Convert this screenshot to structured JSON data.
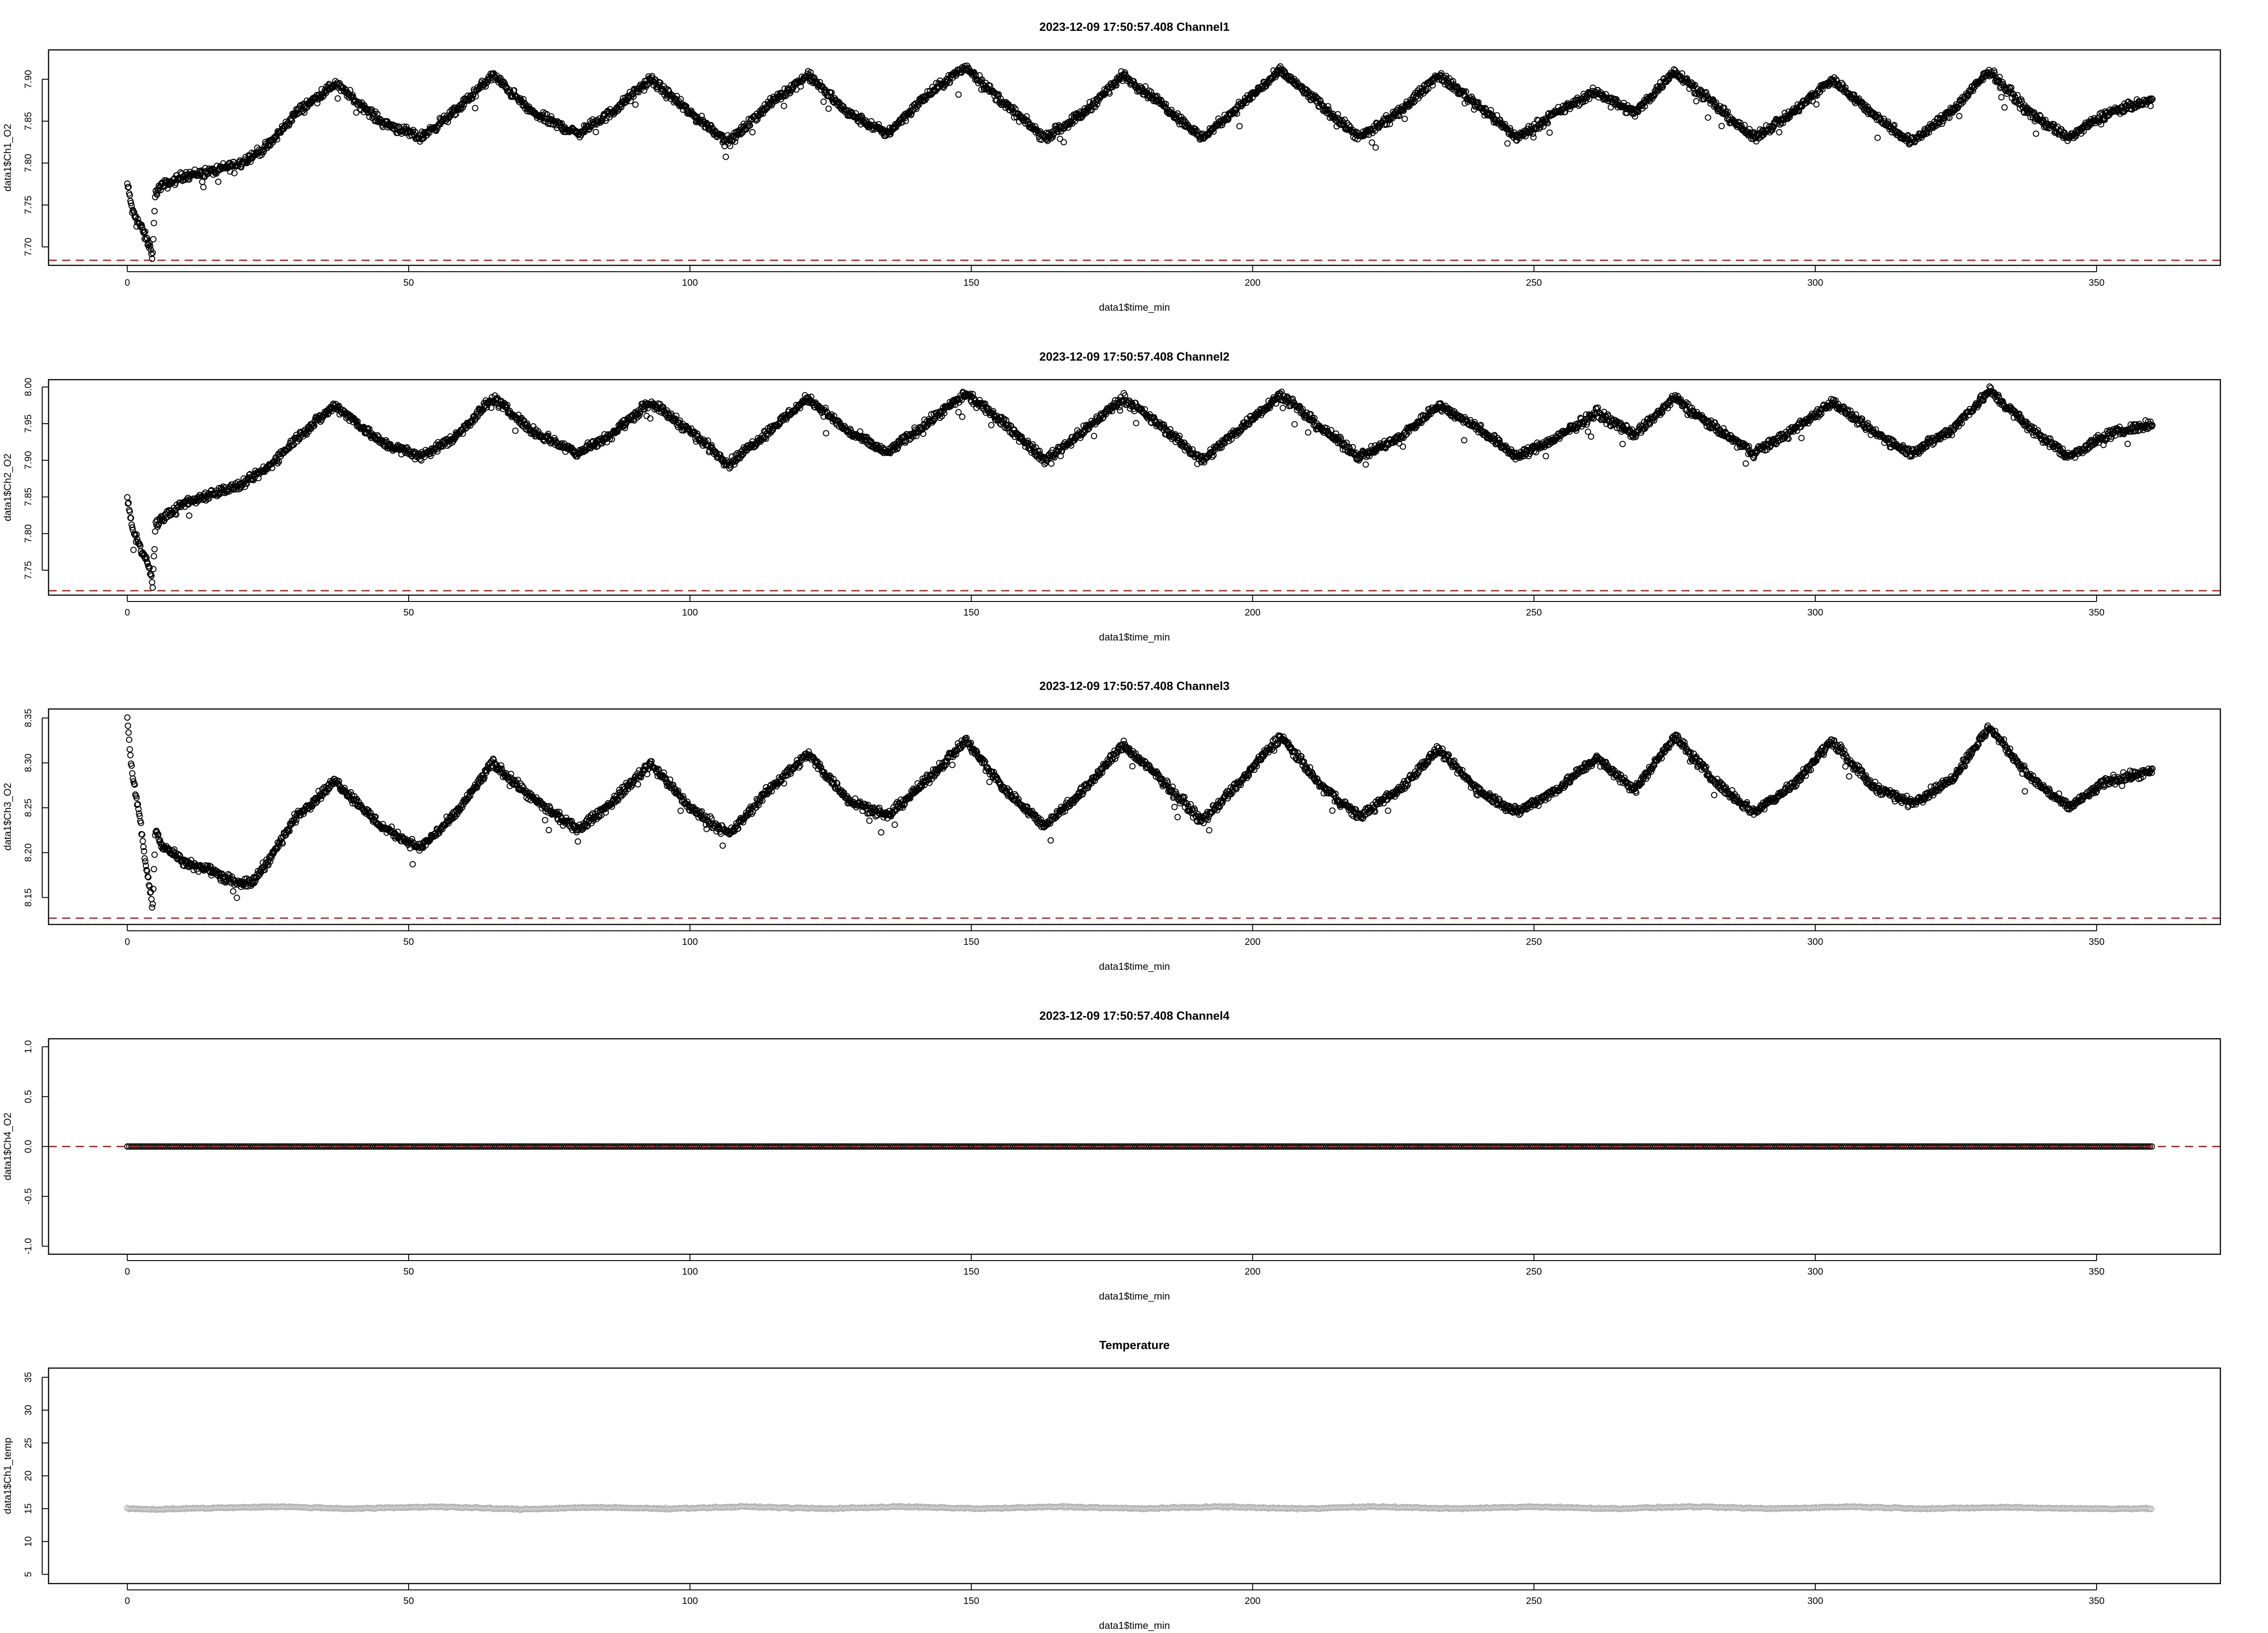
{
  "chart_data": [
    {
      "type": "scatter",
      "title": "2023-12-09 17:50:57.408 Channel1",
      "xlabel": "data1$time_min",
      "ylabel": "data1$Ch1_O2",
      "xlim": [
        -14,
        372
      ],
      "ylim": [
        7.678,
        7.935
      ],
      "xticks": [
        "0",
        "50",
        "100",
        "150",
        "200",
        "250",
        "300",
        "350"
      ],
      "yticks": [
        "7.70",
        "7.75",
        "7.80",
        "7.85",
        "7.90"
      ],
      "hline": {
        "y": 7.684,
        "color": "#a0322d",
        "style": "dashed"
      },
      "point_color": "#000000",
      "series": [
        {
          "x": [
            0,
            1,
            2,
            3,
            4,
            4.5,
            5,
            6,
            8,
            10,
            15,
            20,
            25,
            30,
            37,
            45,
            52,
            58,
            65,
            72,
            80,
            86,
            93,
            100,
            107,
            114,
            121,
            128,
            135,
            142,
            149,
            156,
            163,
            170,
            177,
            184,
            191,
            198,
            205,
            212,
            219,
            226,
            233,
            240,
            247,
            254,
            261,
            268,
            275,
            282,
            289,
            296,
            303,
            310,
            317,
            324,
            331,
            338,
            345,
            352,
            360
          ],
          "y": [
            7.775,
            7.74,
            7.73,
            7.715,
            7.7,
            7.69,
            7.765,
            7.772,
            7.778,
            7.785,
            7.79,
            7.8,
            7.82,
            7.86,
            7.895,
            7.85,
            7.83,
            7.86,
            7.905,
            7.86,
            7.835,
            7.86,
            7.9,
            7.86,
            7.825,
            7.87,
            7.905,
            7.86,
            7.835,
            7.88,
            7.915,
            7.87,
            7.83,
            7.86,
            7.905,
            7.87,
            7.83,
            7.87,
            7.91,
            7.87,
            7.83,
            7.86,
            7.905,
            7.87,
            7.83,
            7.86,
            7.885,
            7.86,
            7.91,
            7.87,
            7.83,
            7.86,
            7.9,
            7.86,
            7.825,
            7.86,
            7.91,
            7.86,
            7.83,
            7.86,
            7.875
          ]
        }
      ]
    },
    {
      "type": "scatter",
      "title": "2023-12-09 17:50:57.408 Channel2",
      "xlabel": "data1$time_min",
      "ylabel": "data1$Ch2_O2",
      "xlim": [
        -14,
        372
      ],
      "ylim": [
        7.716,
        8.01
      ],
      "xticks": [
        "0",
        "50",
        "100",
        "150",
        "200",
        "250",
        "300",
        "350"
      ],
      "yticks": [
        "7.75",
        "7.80",
        "7.85",
        "7.90",
        "7.95",
        "8.00"
      ],
      "hline": {
        "y": 7.722,
        "color": "#a0322d",
        "style": "dashed"
      },
      "point_color": "#000000",
      "series": [
        {
          "x": [
            0,
            1,
            2,
            3,
            4,
            4.5,
            5,
            6,
            8,
            10,
            15,
            20,
            25,
            30,
            37,
            45,
            52,
            58,
            65,
            72,
            80,
            86,
            93,
            100,
            107,
            114,
            121,
            128,
            135,
            142,
            149,
            156,
            163,
            170,
            177,
            184,
            191,
            198,
            205,
            212,
            219,
            226,
            233,
            240,
            247,
            254,
            261,
            268,
            275,
            282,
            289,
            296,
            303,
            310,
            317,
            324,
            331,
            338,
            345,
            352,
            360
          ],
          "y": [
            7.85,
            7.8,
            7.79,
            7.77,
            7.75,
            7.73,
            7.81,
            7.82,
            7.83,
            7.84,
            7.855,
            7.865,
            7.89,
            7.93,
            7.975,
            7.925,
            7.905,
            7.93,
            7.985,
            7.94,
            7.91,
            7.935,
            7.98,
            7.94,
            7.895,
            7.94,
            7.985,
            7.94,
            7.91,
            7.95,
            7.99,
            7.95,
            7.9,
            7.94,
            7.985,
            7.945,
            7.9,
            7.945,
            7.99,
            7.945,
            7.905,
            7.93,
            7.975,
            7.945,
            7.905,
            7.93,
            7.965,
            7.935,
            7.985,
            7.945,
            7.91,
            7.94,
            7.98,
            7.94,
            7.91,
            7.94,
            7.995,
            7.945,
            7.905,
            7.935,
            7.95
          ]
        }
      ]
    },
    {
      "type": "scatter",
      "title": "2023-12-09 17:50:57.408 Channel3",
      "xlabel": "data1$time_min",
      "ylabel": "data1$Ch3_O2",
      "xlim": [
        -14,
        372
      ],
      "ylim": [
        8.12,
        8.36
      ],
      "xticks": [
        "0",
        "50",
        "100",
        "150",
        "200",
        "250",
        "300",
        "350"
      ],
      "yticks": [
        "8.15",
        "8.20",
        "8.25",
        "8.30",
        "8.35"
      ],
      "hline": {
        "y": 8.127,
        "color": "#a0322d",
        "style": "dashed"
      },
      "point_color": "#000000",
      "series": [
        {
          "x": [
            0,
            1,
            2,
            3,
            4,
            4.5,
            5,
            6,
            8,
            10,
            15,
            18,
            22,
            26,
            30,
            37,
            45,
            52,
            58,
            65,
            72,
            80,
            86,
            93,
            100,
            107,
            114,
            121,
            128,
            135,
            142,
            149,
            156,
            163,
            170,
            177,
            184,
            191,
            198,
            205,
            212,
            219,
            226,
            233,
            240,
            247,
            254,
            261,
            268,
            275,
            282,
            289,
            296,
            303,
            310,
            317,
            324,
            331,
            338,
            345,
            352,
            360
          ],
          "y": [
            8.35,
            8.28,
            8.25,
            8.2,
            8.16,
            8.14,
            8.225,
            8.21,
            8.2,
            8.19,
            8.18,
            8.17,
            8.165,
            8.2,
            8.24,
            8.28,
            8.23,
            8.205,
            8.24,
            8.3,
            8.26,
            8.225,
            8.255,
            8.3,
            8.25,
            8.22,
            8.27,
            8.31,
            8.26,
            8.24,
            8.28,
            8.325,
            8.27,
            8.23,
            8.27,
            8.32,
            8.28,
            8.235,
            8.28,
            8.33,
            8.275,
            8.24,
            8.27,
            8.315,
            8.27,
            8.245,
            8.27,
            8.305,
            8.27,
            8.33,
            8.28,
            8.245,
            8.275,
            8.325,
            8.275,
            8.255,
            8.28,
            8.34,
            8.285,
            8.25,
            8.28,
            8.29
          ]
        }
      ]
    },
    {
      "type": "scatter",
      "title": "2023-12-09 17:50:57.408 Channel4",
      "xlabel": "data1$time_min",
      "ylabel": "data1$Ch4_O2",
      "xlim": [
        -14,
        372
      ],
      "ylim": [
        -1.08,
        1.08
      ],
      "xticks": [
        "0",
        "50",
        "100",
        "150",
        "200",
        "250",
        "300",
        "350"
      ],
      "yticks": [
        "-1.0",
        "-0.5",
        "0.0",
        "0.5",
        "1.0"
      ],
      "hline": {
        "y": 0,
        "color": "#a0322d",
        "style": "dashed"
      },
      "point_color": "#000000",
      "series": [
        {
          "x": [
            0,
            360
          ],
          "y": [
            0,
            0
          ]
        }
      ]
    },
    {
      "type": "scatter",
      "title": "Temperature",
      "xlabel": "data1$time_min",
      "ylabel": "data1$Ch1_temp",
      "xlim": [
        -14,
        372
      ],
      "ylim": [
        3.6,
        36.4
      ],
      "xticks": [
        "0",
        "50",
        "100",
        "150",
        "200",
        "250",
        "300",
        "350"
      ],
      "yticks": [
        "5",
        "10",
        "15",
        "20",
        "25",
        "30",
        "35"
      ],
      "point_color": "#b3b3b3",
      "series": [
        {
          "x": [
            0,
            5,
            10,
            20,
            27,
            40,
            55,
            70,
            82,
            96,
            110,
            124,
            137,
            152,
            166,
            180,
            194,
            208,
            222,
            236,
            250,
            264,
            278,
            292,
            306,
            320,
            334,
            348,
            360
          ],
          "y": [
            15.0,
            14.9,
            15.0,
            15.2,
            15.3,
            15.0,
            15.3,
            14.9,
            15.2,
            15.0,
            15.3,
            15.0,
            15.3,
            15.0,
            15.3,
            15.0,
            15.3,
            15.0,
            15.3,
            15.0,
            15.3,
            15.0,
            15.3,
            15.0,
            15.3,
            15.0,
            15.2,
            15.0,
            15.0
          ]
        }
      ]
    }
  ]
}
